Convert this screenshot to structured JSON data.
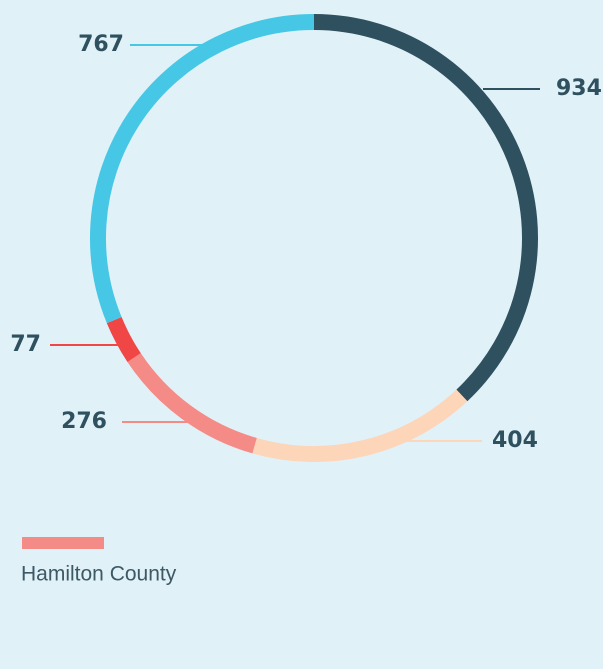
{
  "chart_data": {
    "type": "donut",
    "categories": [
      null,
      null,
      "Hamilton County",
      null,
      null
    ],
    "values": [
      934,
      404,
      276,
      77,
      767
    ],
    "colors": [
      "#2f505f",
      "#fdd5b9",
      "#f58b86",
      "#f04646",
      "#46c7e5"
    ]
  }
}
